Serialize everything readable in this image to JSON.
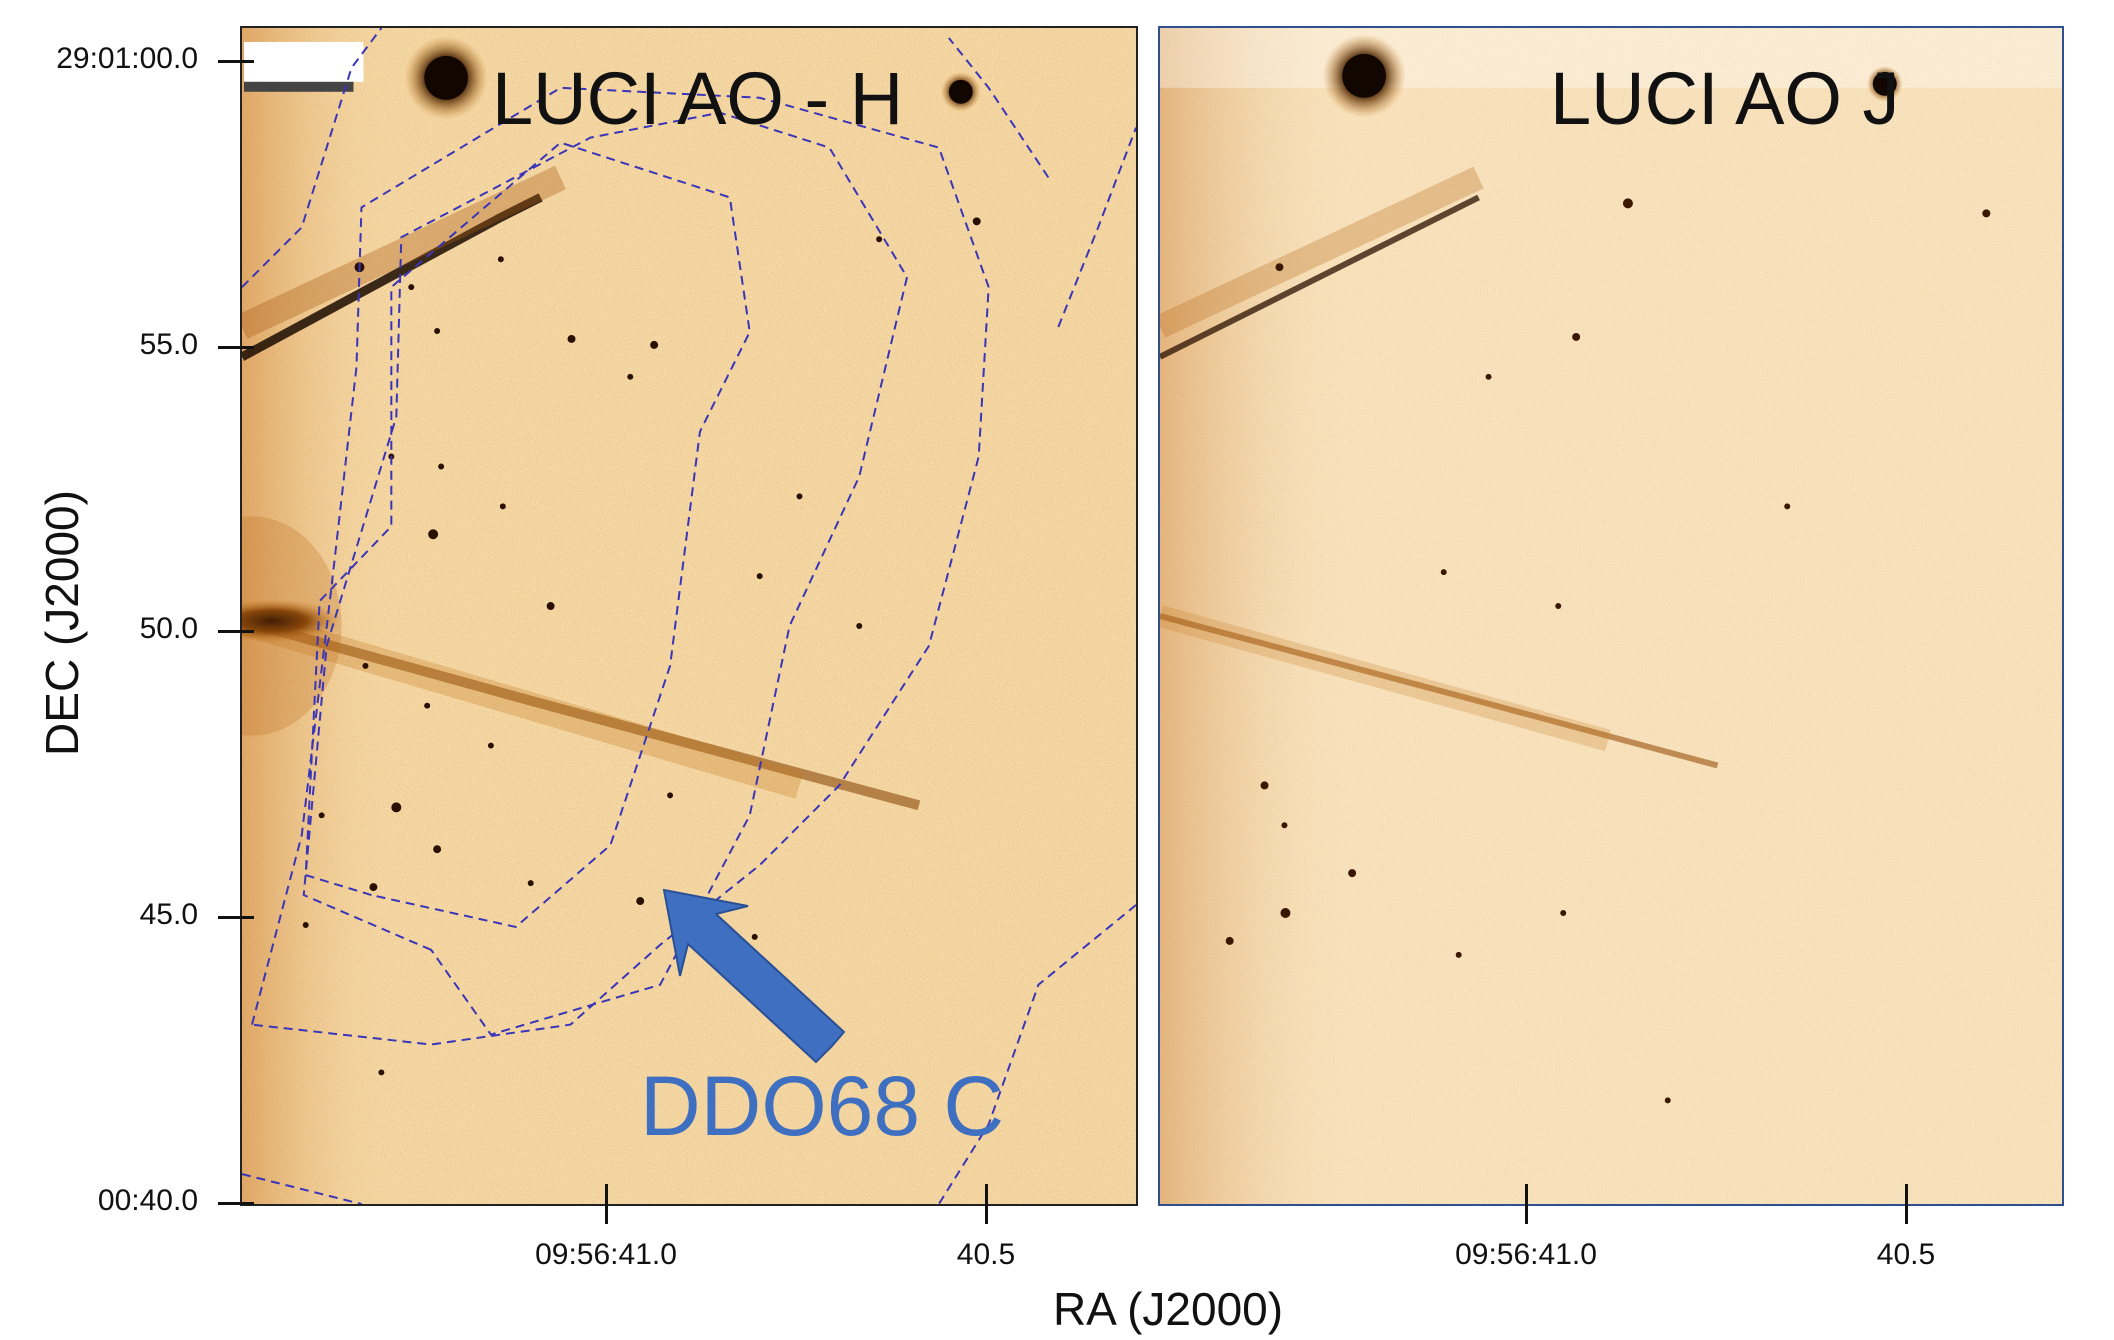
{
  "panels": [
    {
      "id": "h",
      "title": "LUCI AO -  H"
    },
    {
      "id": "j",
      "title": "LUCI AO  J"
    }
  ],
  "axes": {
    "x_title": "RA (J2000)",
    "y_title": "DEC (J2000)",
    "y_ticks": [
      "29:01:00.0",
      "55.0",
      "50.0",
      "45.0",
      "00:40.0"
    ],
    "x_ticks": [
      "09:56:41.0",
      "40.5"
    ]
  },
  "annotation": {
    "label": "DDO68 C"
  },
  "colors": {
    "background": "#f6d9a8",
    "source": "#2a1000",
    "contour": "#3a35b8",
    "annotation": "#3f6fc0"
  }
}
